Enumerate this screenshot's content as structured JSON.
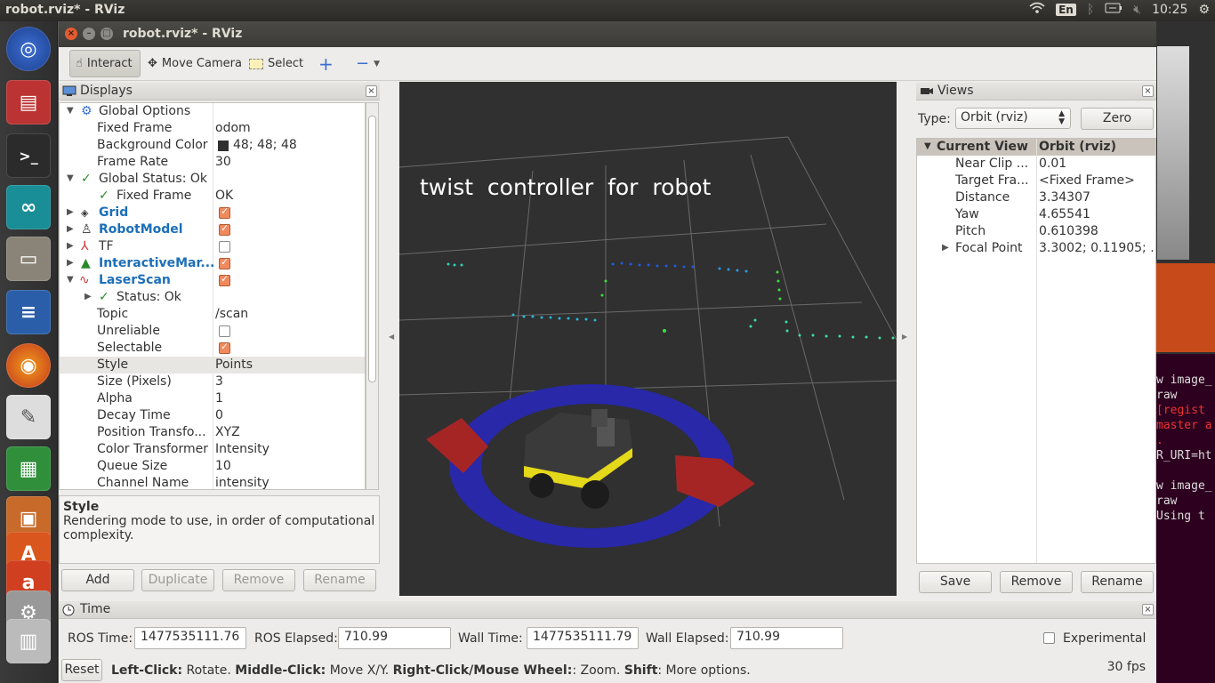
{
  "topbar": {
    "title": "robot.rviz* - RViz",
    "language": "En",
    "clock": "10:25"
  },
  "window": {
    "title": "robot.rviz* - RViz"
  },
  "toolbar": {
    "interact": "Interact",
    "move_camera": "Move Camera",
    "select": "Select"
  },
  "displays": {
    "title": "Displays",
    "rows": {
      "global_options": "Global Options",
      "fixed_frame_k": "Fixed Frame",
      "fixed_frame_v": "odom",
      "bg_color_k": "Background Color",
      "bg_color_v": "48; 48; 48",
      "frame_rate_k": "Frame Rate",
      "frame_rate_v": "30",
      "global_status": "Global Status: Ok",
      "gs_fixed_k": "Fixed Frame",
      "gs_fixed_v": "OK",
      "grid": "Grid",
      "robotmodel": "RobotModel",
      "tf": "TF",
      "interactive": "InteractiveMar...",
      "laserscan": "LaserScan",
      "status_ok": "Status: Ok",
      "topic_k": "Topic",
      "topic_v": "/scan",
      "unreliable_k": "Unreliable",
      "selectable_k": "Selectable",
      "style_k": "Style",
      "style_v": "Points",
      "size_k": "Size (Pixels)",
      "size_v": "3",
      "alpha_k": "Alpha",
      "alpha_v": "1",
      "decay_k": "Decay Time",
      "decay_v": "0",
      "pos_k": "Position Transfo...",
      "pos_v": "XYZ",
      "color_k": "Color Transformer",
      "color_v": "Intensity",
      "queue_k": "Queue Size",
      "queue_v": "10",
      "channel_k": "Channel Name",
      "channel_v": "intensity"
    },
    "desc_title": "Style",
    "desc_text": "Rendering mode to use, in order of computational complexity.",
    "buttons": {
      "add": "Add",
      "duplicate": "Duplicate",
      "remove": "Remove",
      "rename": "Rename"
    }
  },
  "viewport": {
    "overlay_text": "twist  controller  for  robot"
  },
  "views": {
    "title": "Views",
    "type_label": "Type:",
    "type_value": "Orbit (rviz)",
    "zero": "Zero",
    "current_view_k": "Current View",
    "current_view_v": "Orbit (rviz)",
    "near_clip_k": "Near Clip ...",
    "near_clip_v": "0.01",
    "target_k": "Target Fra...",
    "target_v": "<Fixed Frame>",
    "distance_k": "Distance",
    "distance_v": "3.34307",
    "yaw_k": "Yaw",
    "yaw_v": "4.65541",
    "pitch_k": "Pitch",
    "pitch_v": "0.610398",
    "focal_k": "Focal Point",
    "focal_v": "3.3002; 0.11905; ...",
    "save": "Save",
    "remove": "Remove",
    "rename": "Rename"
  },
  "time": {
    "title": "Time",
    "ros_time_label": "ROS Time:",
    "ros_time": "1477535111.76",
    "ros_elapsed_label": "ROS Elapsed:",
    "ros_elapsed": "710.99",
    "wall_time_label": "Wall Time:",
    "wall_time": "1477535111.79",
    "wall_elapsed_label": "Wall Elapsed:",
    "wall_elapsed": "710.99",
    "experimental": "Experimental",
    "reset": "Reset",
    "hint_b1": "Left-Click:",
    "hint_t1": " Rotate. ",
    "hint_b2": "Middle-Click:",
    "hint_t2": " Move X/Y. ",
    "hint_b3": "Right-Click/Mouse Wheel:",
    "hint_t3": ": Zoom. ",
    "hint_b4": "Shift",
    "hint_t4": ": More options.",
    "fps": "30 fps"
  },
  "terminal": {
    "lines": [
      "w image_",
      "raw",
      " [regist",
      "master a",
      ".",
      "R_URI=ht",
      "w image_",
      "raw",
      " Using t"
    ]
  },
  "colors": {
    "viewport_bg": "#303030",
    "accent_blue": "#1d6fb8",
    "check_orange": "#f08a5d"
  }
}
